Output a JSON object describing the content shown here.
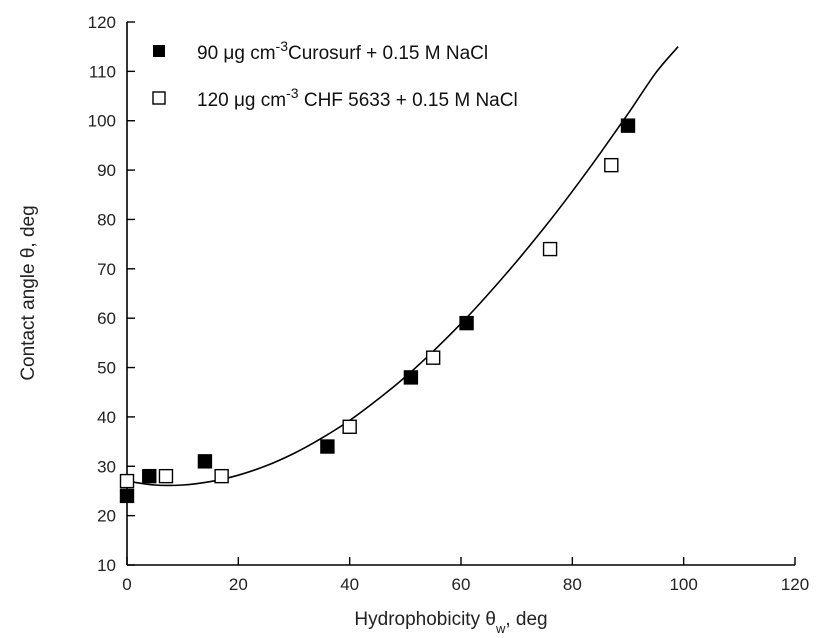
{
  "chart_data": {
    "type": "scatter",
    "xlabel": {
      "main": "Hydrophobicity θ",
      "subscript": "w",
      "suffix": ", deg"
    },
    "ylabel": "Contact angle θ, deg",
    "xlim": [
      0,
      120
    ],
    "ylim": [
      10,
      120
    ],
    "x_ticks": [
      0,
      20,
      40,
      60,
      80,
      100,
      120
    ],
    "y_ticks": [
      10,
      20,
      30,
      40,
      50,
      60,
      70,
      80,
      90,
      100,
      110,
      120
    ],
    "grid": false,
    "legend_position": "top-left",
    "series": [
      {
        "name": {
          "prefix": "90 μg cm",
          "superscript": "-3",
          "suffix": "Curosurf + 0.15 M NaCl"
        },
        "marker": "filled-square",
        "color": "#000000",
        "points": [
          [
            0,
            24
          ],
          [
            4,
            28
          ],
          [
            14,
            31
          ],
          [
            36,
            34
          ],
          [
            51,
            48
          ],
          [
            61,
            59
          ],
          [
            90,
            99
          ]
        ]
      },
      {
        "name": {
          "prefix": "120 μg cm",
          "superscript": "-3",
          "suffix": " CHF 5633 + 0.15 M NaCl"
        },
        "marker": "open-square",
        "color": "#000000",
        "points": [
          [
            0,
            27
          ],
          [
            7,
            28
          ],
          [
            17,
            28
          ],
          [
            40,
            38
          ],
          [
            55,
            52
          ],
          [
            76,
            74
          ],
          [
            87,
            91
          ]
        ]
      }
    ],
    "fit_curve": {
      "description": "smooth polynomial fit",
      "points": [
        [
          0,
          27
        ],
        [
          5,
          26.2
        ],
        [
          10,
          26.2
        ],
        [
          15,
          26.9
        ],
        [
          20,
          28.2
        ],
        [
          25,
          30.1
        ],
        [
          30,
          32.6
        ],
        [
          35,
          35.7
        ],
        [
          40,
          39.3
        ],
        [
          45,
          43.5
        ],
        [
          50,
          48.1
        ],
        [
          55,
          53.3
        ],
        [
          60,
          58.9
        ],
        [
          65,
          65
        ],
        [
          70,
          71.5
        ],
        [
          75,
          78.4
        ],
        [
          80,
          85.7
        ],
        [
          85,
          93.4
        ],
        [
          90,
          101.4
        ],
        [
          95,
          109.7
        ],
        [
          99,
          115
        ]
      ]
    }
  }
}
